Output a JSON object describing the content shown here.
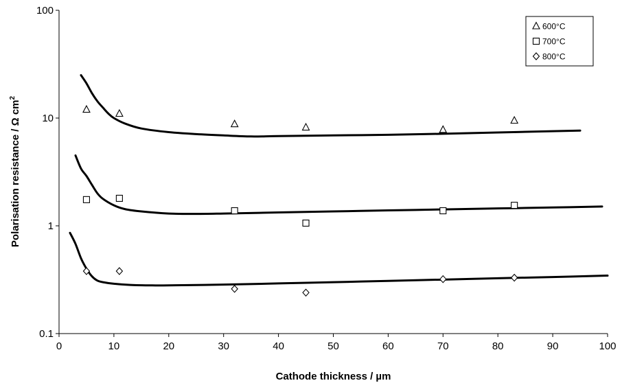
{
  "chart_data": {
    "type": "scatter",
    "title": "",
    "xlabel": "Cathode thickness / µm",
    "ylabel_main": "Polarisation resistance / Ω cm",
    "ylabel_sup": "2",
    "xlim": [
      0,
      100
    ],
    "ylim": [
      0.1,
      100
    ],
    "y_scale": "log",
    "x_ticks": [
      "0",
      "10",
      "20",
      "30",
      "40",
      "50",
      "60",
      "70",
      "80",
      "90",
      "100"
    ],
    "y_ticks": [
      "0.1",
      "1",
      "10",
      "100"
    ],
    "grid": false,
    "legend_position": "top-right",
    "series": [
      {
        "name": "600°C",
        "marker": "triangle",
        "points": [
          [
            5,
            12.0
          ],
          [
            11,
            11.0
          ],
          [
            32,
            8.8
          ],
          [
            45,
            8.2
          ],
          [
            70,
            7.8
          ],
          [
            83,
            9.5
          ]
        ],
        "fit_curve": [
          [
            4,
            25
          ],
          [
            5,
            21
          ],
          [
            6,
            17
          ],
          [
            7,
            14.3
          ],
          [
            8,
            12.5
          ],
          [
            9,
            11.0
          ],
          [
            10,
            10.0
          ],
          [
            12,
            8.9
          ],
          [
            15,
            8.0
          ],
          [
            20,
            7.4
          ],
          [
            25,
            7.1
          ],
          [
            30,
            6.9
          ],
          [
            35,
            6.75
          ],
          [
            40,
            6.8
          ],
          [
            50,
            6.9
          ],
          [
            60,
            7.0
          ],
          [
            70,
            7.15
          ],
          [
            80,
            7.35
          ],
          [
            90,
            7.55
          ],
          [
            95,
            7.65
          ]
        ]
      },
      {
        "name": "700°C",
        "marker": "square",
        "points": [
          [
            5,
            1.75
          ],
          [
            11,
            1.8
          ],
          [
            32,
            1.38
          ],
          [
            45,
            1.06
          ],
          [
            70,
            1.38
          ],
          [
            83,
            1.55
          ]
        ],
        "fit_curve": [
          [
            3,
            4.5
          ],
          [
            4,
            3.4
          ],
          [
            5,
            2.9
          ],
          [
            6,
            2.4
          ],
          [
            7,
            2.0
          ],
          [
            8,
            1.78
          ],
          [
            10,
            1.55
          ],
          [
            12,
            1.43
          ],
          [
            15,
            1.36
          ],
          [
            20,
            1.3
          ],
          [
            25,
            1.29
          ],
          [
            30,
            1.3
          ],
          [
            40,
            1.33
          ],
          [
            50,
            1.36
          ],
          [
            60,
            1.39
          ],
          [
            70,
            1.42
          ],
          [
            80,
            1.45
          ],
          [
            90,
            1.48
          ],
          [
            99,
            1.51
          ]
        ]
      },
      {
        "name": "800°C",
        "marker": "diamond",
        "points": [
          [
            5,
            0.38
          ],
          [
            11,
            0.38
          ],
          [
            32,
            0.26
          ],
          [
            45,
            0.24
          ],
          [
            70,
            0.32
          ],
          [
            83,
            0.33
          ]
        ],
        "fit_curve": [
          [
            2,
            0.86
          ],
          [
            3,
            0.68
          ],
          [
            4,
            0.5
          ],
          [
            5,
            0.4
          ],
          [
            6,
            0.34
          ],
          [
            7,
            0.31
          ],
          [
            8,
            0.3
          ],
          [
            10,
            0.29
          ],
          [
            13,
            0.283
          ],
          [
            17,
            0.28
          ],
          [
            20,
            0.28
          ],
          [
            30,
            0.285
          ],
          [
            40,
            0.292
          ],
          [
            50,
            0.3
          ],
          [
            60,
            0.308
          ],
          [
            70,
            0.317
          ],
          [
            80,
            0.326
          ],
          [
            90,
            0.335
          ],
          [
            100,
            0.345
          ]
        ]
      }
    ]
  }
}
